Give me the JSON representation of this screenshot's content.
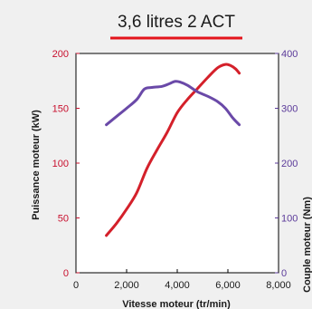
{
  "chart_data": {
    "type": "line",
    "title": "3,6 litres 2 ACT",
    "xlabel": "Vitesse moteur (tr/min)",
    "ylabel_left": "Puissance moteur (kW)",
    "ylabel_right": "Couple moteur (Nm)",
    "xlim": [
      0,
      8000
    ],
    "ylim_left": [
      0,
      200
    ],
    "ylim_right": [
      0,
      400
    ],
    "x_ticks": [
      "0",
      "2,000",
      "4,000",
      "6,000",
      "8,000"
    ],
    "x_tick_values": [
      0,
      2000,
      4000,
      6000,
      8000
    ],
    "y_left_ticks": [
      "0",
      "50",
      "100",
      "150",
      "200"
    ],
    "y_left_tick_values": [
      0,
      50,
      100,
      150,
      200
    ],
    "y_right_ticks": [
      "0",
      "100",
      "200",
      "300",
      "400"
    ],
    "y_right_tick_values": [
      0,
      100,
      200,
      300,
      400
    ],
    "grid": false,
    "colors": {
      "power": "#d4202a",
      "torque": "#6a49a8",
      "title_underline": "#e3141b",
      "left_axis_text": "#c8102e",
      "right_axis_text": "#5b3a9a"
    },
    "series": [
      {
        "axis": "left",
        "x": [
          1200,
          1600,
          2000,
          2400,
          2800,
          3200,
          3600,
          4000,
          4400,
          4800,
          5200,
          5600,
          5900,
          6100,
          6300,
          6450
        ],
        "values": [
          34,
          45,
          58,
          73,
          95,
          112,
          128,
          146,
          158,
          168,
          178,
          187,
          190,
          189,
          186,
          182
        ]
      },
      {
        "axis": "right",
        "x": [
          1200,
          1600,
          2000,
          2400,
          2700,
          3000,
          3400,
          3700,
          3900,
          4100,
          4400,
          4800,
          5200,
          5600,
          5900,
          6200,
          6450
        ],
        "values": [
          270,
          285,
          300,
          316,
          335,
          338,
          340,
          345,
          349,
          348,
          342,
          330,
          322,
          312,
          300,
          282,
          270
        ]
      }
    ]
  }
}
